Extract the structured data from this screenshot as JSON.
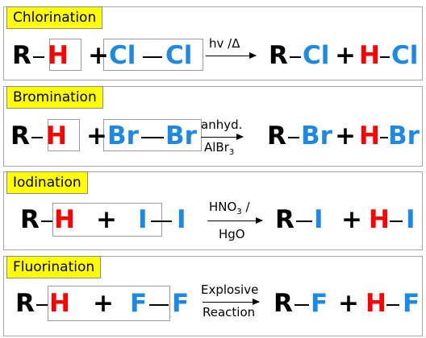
{
  "reactions": [
    {
      "title": "Chlorination",
      "r": "R",
      "h": "H",
      "plus1": "+",
      "x1": "Cl",
      "x2": "Cl",
      "cond_top": "hv /Δ",
      "prod_r": "R",
      "prod_x": "Cl",
      "plus2": "+",
      "prod_h": "H",
      "prod_x2": "Cl"
    },
    {
      "title": "Bromination",
      "r": "R",
      "h": "H",
      "plus1": "+",
      "x1": "Br",
      "x2": "Br",
      "cond_top": "anhyd.",
      "cond_bottom_main": "AlBr",
      "cond_bottom_sub": "3",
      "prod_r": "R",
      "prod_x": "Br",
      "plus2": "+",
      "prod_h": "H",
      "prod_x2": "Br"
    },
    {
      "title": "Iodination",
      "r": "R",
      "h": "H",
      "plus1": "+",
      "x1": "I",
      "x2": "I",
      "cond_top_main": "HNO",
      "cond_top_sub": "3",
      "cond_top_tail": " /",
      "cond_bottom": "HgO",
      "prod_r": "R",
      "prod_x": "I",
      "plus2": "+",
      "prod_h": "H",
      "prod_x2": "I"
    },
    {
      "title": "Fluorination",
      "r": "R",
      "h": "H",
      "plus1": "+",
      "x1": "F",
      "x2": "F",
      "cond_top": "Explosive",
      "cond_bottom": "Reaction",
      "prod_r": "R",
      "prod_x": "F",
      "plus2": "+",
      "prod_h": "H",
      "prod_x2": "F"
    }
  ],
  "colors": {
    "label_bg": "#ffff00",
    "hydrogen": "#ff0000",
    "halogen": "#1e88e5",
    "carbon_group": "#000000"
  }
}
